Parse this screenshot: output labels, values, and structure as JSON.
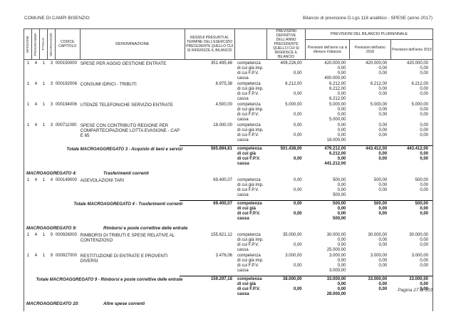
{
  "colors": {
    "ink": "#1a1a1a",
    "line": "#555555"
  },
  "page": {
    "header_left": "COMUNE DI CAMPI BISENZIO",
    "header_right": "Bilancio di previsione D.Lgs 118 analitico - SPESE (anno 2017)",
    "footer": "Pagina 27 di 103"
  },
  "table": {
    "headers": {
      "missione": "MISSIONE",
      "programma": "PROGRAMMA",
      "titolo": "TITOLO",
      "macroaggr": "MACROAGGR.",
      "codice_capitolo": "CODICE CAPITOLO",
      "denominazione": "DENOMINAZIONE",
      "residui": "RESIDUI PRESUNTI AL TERMINE DELL'ESERCIZIO PRECEDENTE QUELLO CUI SI RIFERISCE IL BILANCIO",
      "previsioni_definitive": "PREVISIONI DEFINITIVE DELL'ANNO PRECEDENTE QUELLO CUI SI RIFERISCE IL BILANCIO",
      "pluriennale": "PREVISIONI DEL BILANCIO PLURIENNALE",
      "anno_rif": "Previsioni dell'anno cui si riferisce il bilancio",
      "anno_2018": "Previsioni dell'anno 2018",
      "anno_2019": "Previsioni dell'anno 2019"
    },
    "rows": [
      {
        "type": "capitolo",
        "codes": [
          "1",
          "4",
          "1",
          "3"
        ],
        "cap": "000150000",
        "den": "SPESE PER AGGIO GESTIONE ENTRATE",
        "residui": "351.495,48",
        "lines": [
          [
            "competenza",
            "409.226,00",
            "420.000,00",
            "420.000,00",
            "420.000,00"
          ],
          [
            "di cui già imp.",
            "",
            "0,00",
            "0,00",
            "0,00"
          ],
          [
            "di cui F.P.V.",
            "0,00",
            "0,00",
            "0,00",
            "0,00"
          ],
          [
            "cassa",
            "",
            "400.000,00",
            "",
            ""
          ]
        ]
      },
      {
        "type": "capitolo",
        "codes": [
          "1",
          "4",
          "1",
          "3"
        ],
        "cap": "000192006",
        "den": "CONSUMI IDRICI - TRIBUTI",
        "residui": "8.975,38",
        "lines": [
          [
            "competenza",
            "6.212,00",
            "6.212,00",
            "6.212,00",
            "6.212,00"
          ],
          [
            "di cui già imp.",
            "",
            "6.212,00",
            "0,00",
            "0,00"
          ],
          [
            "di cui F.P.V.",
            "0,00",
            "0,00",
            "0,00",
            "0,00"
          ],
          [
            "cassa",
            "",
            "6.212,00",
            "",
            ""
          ]
        ]
      },
      {
        "type": "capitolo",
        "codes": [
          "1",
          "4",
          "1",
          "3"
        ],
        "cap": "000194006",
        "den": "UTENZE TELEFONICHE SERVIZIO ENTRATE",
        "residui": "4.500,00",
        "lines": [
          [
            "competenza",
            "5.000,00",
            "5.000,00",
            "5.000,00",
            "5.000,00"
          ],
          [
            "di cui già imp.",
            "",
            "0,00",
            "0,00",
            "0,00"
          ],
          [
            "di cui F.P.V.",
            "0,00",
            "0,00",
            "0,00",
            "0,00"
          ],
          [
            "cassa",
            "",
            "5.000,00",
            "",
            ""
          ]
        ]
      },
      {
        "type": "capitolo",
        "codes": [
          "1",
          "4",
          "1",
          "3"
        ],
        "cap": "000711000",
        "den": "SPESE CON CONTRIBUTO REGIONE PER COMPARTECIPAZIONE LOTTA EVASIONE - CAP E 65",
        "residui": "18.000,00",
        "lines": [
          [
            "competenza",
            "0,00",
            "0,00",
            "0,00",
            "0,00"
          ],
          [
            "di cui già imp.",
            "",
            "0,00",
            "0,00",
            "0,00"
          ],
          [
            "di cui F.P.V.",
            "0,00",
            "0,00",
            "0,00",
            "0,00"
          ],
          [
            "cassa",
            "",
            "18.000,00",
            "",
            ""
          ]
        ]
      },
      {
        "type": "totale",
        "den": "Totale MACROAGGREGATO 3 - Acquisto di beni e servizi",
        "residui": "565.894,81",
        "lines": [
          [
            "competenza",
            "501.438,00",
            "479.212,00",
            "443.412,00",
            "443.412,00"
          ],
          [
            "di cui già",
            "",
            "6.212,00",
            "0,00",
            "0,00"
          ],
          [
            "di cui F.P.V.",
            "0,00",
            "0,00",
            "0,00",
            "0,00"
          ],
          [
            "cassa",
            "",
            "441.212,00",
            "",
            ""
          ]
        ]
      },
      {
        "type": "sezione",
        "label": "MACROAGGREGATO 4:",
        "title": "Trasferimenti correnti"
      },
      {
        "type": "capitolo",
        "codes": [
          "1",
          "4",
          "1",
          "4"
        ],
        "cap": "000149000",
        "den": "AGEVOLAZIONI TARI",
        "residui": "69.400,07",
        "lines": [
          [
            "competenza",
            "0,00",
            "500,00",
            "500,00",
            "500,00"
          ],
          [
            "di cui già imp.",
            "",
            "0,00",
            "0,00",
            "0,00"
          ],
          [
            "di cui F.P.V.",
            "0,00",
            "0,00",
            "0,00",
            "0,00"
          ],
          [
            "cassa",
            "",
            "500,00",
            "",
            ""
          ]
        ]
      },
      {
        "type": "totale",
        "den": "Totale MACROAGGREGATO 4 - Trasferimenti correnti",
        "residui": "69.400,07",
        "lines": [
          [
            "competenza",
            "0,00",
            "500,00",
            "500,00",
            "500,00"
          ],
          [
            "di cui già",
            "",
            "0,00",
            "0,00",
            "0,00"
          ],
          [
            "di cui F.P.V.",
            "0,00",
            "0,00",
            "0,00",
            "0,00"
          ],
          [
            "cassa",
            "",
            "500,00",
            "",
            ""
          ]
        ]
      },
      {
        "type": "sezione",
        "label": "MACROAGGREGATO 9:",
        "title": "Rimborsi e poste correttive delle entrate"
      },
      {
        "type": "capitolo",
        "codes": [
          "1",
          "4",
          "1",
          "9"
        ],
        "cap": "000926000",
        "den": "RIMBORSI DI TRIBUTI E SPESE RELATIVE AL CONTENZIOSO",
        "residui": "155.821,12",
        "lines": [
          [
            "competenza",
            "35.000,00",
            "30.000,00",
            "30.000,00",
            "30.000,00"
          ],
          [
            "di cui già imp.",
            "",
            "0,00",
            "0,00",
            "0,00"
          ],
          [
            "di cui F.P.V.",
            "0,00",
            "0,00",
            "0,00",
            "0,00"
          ],
          [
            "cassa",
            "",
            "25.000,00",
            "",
            ""
          ]
        ]
      },
      {
        "type": "capitolo",
        "codes": [
          "1",
          "4",
          "1",
          "9"
        ],
        "cap": "000927000",
        "den": "RESTITUZIONE DI ENTRATE E PROVENTI DIVERSI",
        "residui": "3.476,06",
        "lines": [
          [
            "competenza",
            "3.000,00",
            "3.000,00",
            "3.000,00",
            "3.000,00"
          ],
          [
            "di cui già imp.",
            "",
            "0,00",
            "0,00",
            "0,00"
          ],
          [
            "di cui F.P.V.",
            "0,00",
            "0,00",
            "0,00",
            "0,00"
          ],
          [
            "cassa",
            "",
            "3.000,00",
            "",
            ""
          ]
        ]
      },
      {
        "type": "totale",
        "den": "Totale MACROAGGREGATO 9 - Rimborsi e poste correttive delle entrate",
        "residui": "159.297,18",
        "lines": [
          [
            "competenza",
            "38.000,00",
            "33.000,00",
            "33.000,00",
            "33.000,00"
          ],
          [
            "di cui già",
            "",
            "0,00",
            "0,00",
            "0,00"
          ],
          [
            "di cui F.P.V.",
            "0,00",
            "0,00",
            "0,00",
            "0,00"
          ],
          [
            "cassa",
            "",
            "28.000,00",
            "",
            ""
          ]
        ]
      },
      {
        "type": "sezione",
        "label": "MACROAGGREGATO 10:",
        "title": "Altre spese correnti"
      }
    ]
  }
}
